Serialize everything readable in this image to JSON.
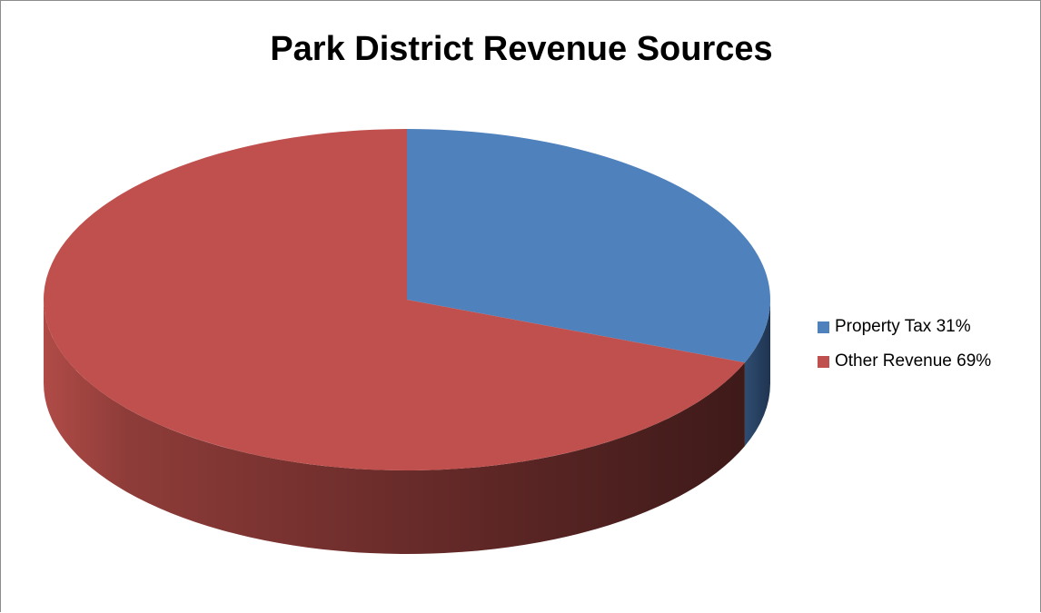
{
  "chart_data": {
    "type": "pie",
    "title": "Park District Revenue Sources",
    "categories": [
      "Property Tax 31%",
      "Other Revenue 69%"
    ],
    "values": [
      31,
      69
    ],
    "colors": [
      "#4F81BD",
      "#C0504D"
    ],
    "legend_position": "right",
    "three_d": true
  }
}
